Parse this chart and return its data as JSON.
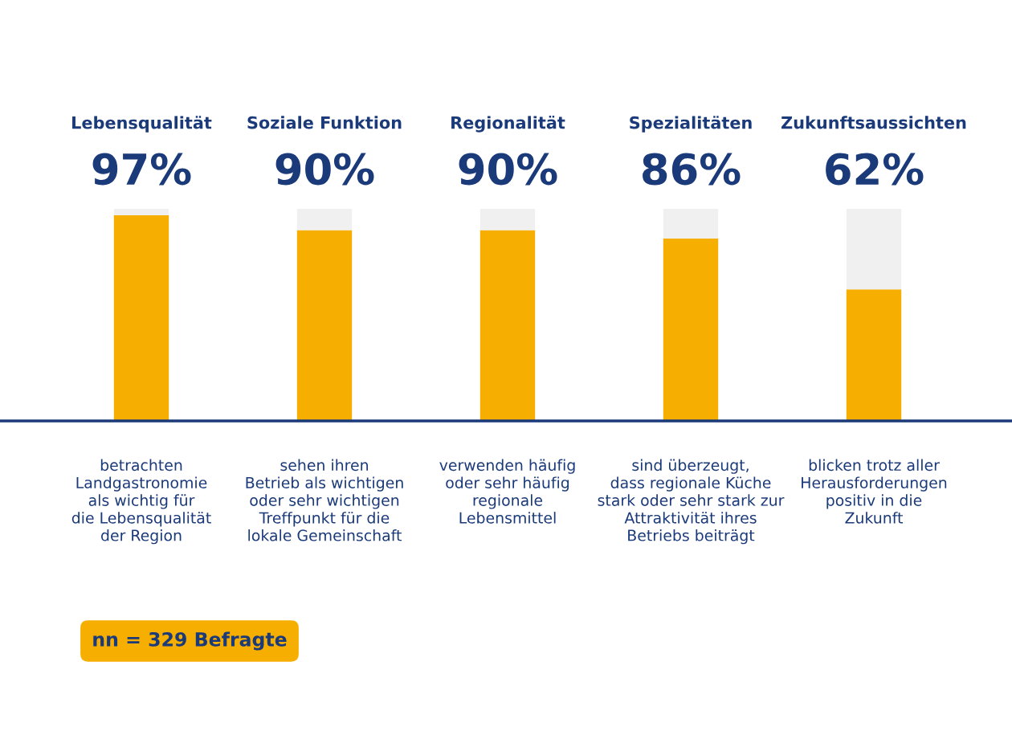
{
  "chart_data": {
    "type": "bar",
    "stacked": true,
    "categories": [
      "Lebensqualität",
      "Soziale Funktion",
      "Regionalität",
      "Spezialitäten",
      "Zukunftsaussichten"
    ],
    "series": [
      {
        "color": "#f6ae00",
        "values": [
          97,
          90,
          90,
          86,
          62
        ],
        "value_labels": [
          "97%",
          "90%",
          "90%",
          "86%",
          "62%"
        ]
      },
      {
        "color": "#f0f0f0",
        "values": [
          3,
          10,
          10,
          14,
          38
        ]
      }
    ],
    "ylim": [
      0,
      100
    ],
    "tick_labels": false,
    "annotations": [
      "betrachten\nLandgastronomie\nals wichtig für\ndie Lebensqualität\nder Region",
      "sehen ihren\nBetrieb als wichtigen\noder sehr wichtigen\nTreffpunkt für die\nlokale Gemeinschaft",
      "verwenden häufig\noder sehr häufig\nregionale\nLebensmittel",
      "sind überzeugt,\ndass regionale Küche\nstark oder sehr stark zur\nAttraktivität ihres\nBetriebs beiträgt",
      "blicken trotz aller\nHerausforderungen\npositiv in die\nZukunft",
      "nn = 329 Befragte"
    ]
  }
}
